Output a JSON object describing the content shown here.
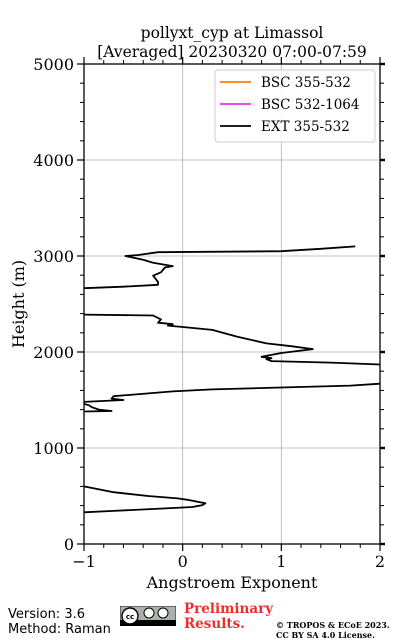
{
  "chart_data": {
    "type": "line",
    "title": "pollyxt_cyp at Limassol",
    "subtitle": "[Averaged] 20230320 07:00-07:59",
    "xlabel": "Angstroem Exponent",
    "ylabel": "Height (m)",
    "xlim": [
      -1,
      2
    ],
    "ylim": [
      0,
      5000
    ],
    "x_ticks": [
      "−1",
      "0",
      "1",
      "2"
    ],
    "y_ticks": [
      "0",
      "1000",
      "2000",
      "3000",
      "4000",
      "5000"
    ],
    "grid": true,
    "legend_position": "top-right",
    "series": [
      {
        "name": "BSC 355-532",
        "color": "#ff7f0e",
        "points": []
      },
      {
        "name": "BSC 532-1064",
        "color": "#e532e5",
        "points": []
      },
      {
        "name": "EXT 355-532",
        "color": "#000000",
        "segments": [
          [
            [
              -1.0,
              330
            ],
            [
              -0.7,
              345
            ],
            [
              -0.3,
              365
            ],
            [
              0.1,
              385
            ],
            [
              0.2,
              405
            ],
            [
              0.23,
              425
            ],
            [
              0.15,
              440
            ],
            [
              0.05,
              460
            ],
            [
              -0.05,
              475
            ],
            [
              -0.35,
              500
            ],
            [
              -0.7,
              540
            ],
            [
              -1.0,
              600
            ]
          ],
          [
            [
              -1.0,
              1380
            ],
            [
              -0.72,
              1385
            ],
            [
              -0.85,
              1400
            ],
            [
              -0.92,
              1425
            ],
            [
              -0.95,
              1445
            ],
            [
              -1.0,
              1460
            ]
          ],
          [
            [
              -1.0,
              1480
            ],
            [
              -0.6,
              1500
            ],
            [
              -0.72,
              1515
            ],
            [
              -0.7,
              1540
            ],
            [
              -0.1,
              1590
            ],
            [
              0.3,
              1610
            ],
            [
              1.0,
              1630
            ],
            [
              1.7,
              1650
            ],
            [
              2.0,
              1670
            ]
          ],
          [
            [
              2.0,
              1870
            ],
            [
              1.5,
              1890
            ],
            [
              0.9,
              1905
            ],
            [
              0.85,
              1925
            ],
            [
              0.9,
              1935
            ],
            [
              0.8,
              1950
            ],
            [
              1.0,
              1990
            ],
            [
              1.32,
              2030
            ],
            [
              1.1,
              2060
            ],
            [
              0.85,
              2090
            ],
            [
              0.55,
              2160
            ],
            [
              0.3,
              2230
            ],
            [
              0.0,
              2260
            ],
            [
              -0.15,
              2275
            ],
            [
              -0.1,
              2290
            ],
            [
              -0.25,
              2305
            ],
            [
              -0.22,
              2340
            ],
            [
              -0.3,
              2380
            ],
            [
              -1.0,
              2390
            ]
          ],
          [
            [
              -1.0,
              2665
            ],
            [
              -0.6,
              2680
            ],
            [
              -0.25,
              2700
            ],
            [
              -0.25,
              2730
            ],
            [
              -0.28,
              2770
            ],
            [
              -0.3,
              2795
            ],
            [
              -0.22,
              2830
            ],
            [
              -0.18,
              2880
            ],
            [
              -0.1,
              2895
            ],
            [
              -0.3,
              2930
            ],
            [
              -0.4,
              2960
            ],
            [
              -0.58,
              3000
            ],
            [
              -0.45,
              3010
            ],
            [
              -0.25,
              3040
            ],
            [
              0.4,
              3045
            ],
            [
              1.0,
              3050
            ],
            [
              1.4,
              3075
            ],
            [
              1.75,
              3100
            ]
          ]
        ]
      }
    ]
  },
  "footer": {
    "version": "Version: 3.6",
    "method": "Method: Raman",
    "preliminary_line1": "Preliminary",
    "preliminary_line2": "Results.",
    "copyright_line1": "© TROPOS & ECoE 2023.",
    "copyright_line2": "CC BY SA 4.0 License."
  }
}
